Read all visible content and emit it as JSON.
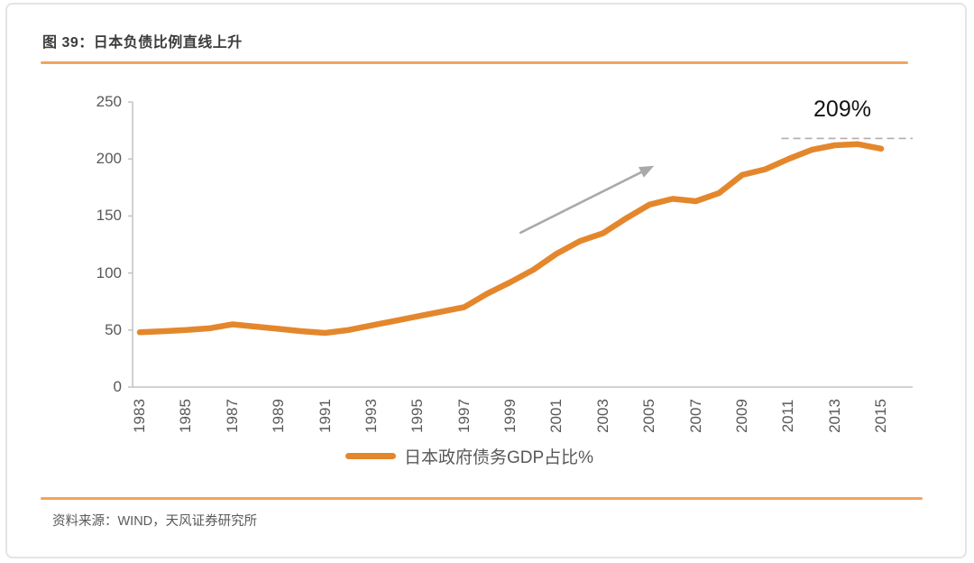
{
  "header": {
    "title": "图 39：日本负债比例直线上升"
  },
  "footer": {
    "source": "资料来源：WIND，天风证券研究所"
  },
  "theme": {
    "rule_orange": "#F2A45C",
    "line_orange": "#E4872C",
    "axis_gray": "#C2C2C2",
    "label_gray": "#595959",
    "arrow_gray": "#A9A9A9",
    "dashed_gray": "#AFAFAF",
    "annotation_black": "#141414"
  },
  "chart_data": {
    "type": "line",
    "title": "图 39：日本负债比例直线上升",
    "x": [
      1983,
      1984,
      1985,
      1986,
      1987,
      1988,
      1989,
      1990,
      1991,
      1992,
      1993,
      1994,
      1995,
      1996,
      1997,
      1998,
      1999,
      2000,
      2001,
      2002,
      2003,
      2004,
      2005,
      2006,
      2007,
      2008,
      2009,
      2010,
      2011,
      2012,
      2013,
      2014,
      2015
    ],
    "series": [
      {
        "name": "日本政府债务GDP占比%",
        "color": "#E4872C",
        "values": [
          48,
          49,
          50,
          51.5,
          55,
          53,
          51,
          49,
          47.5,
          50,
          54,
          58,
          62,
          66,
          70,
          82,
          92,
          103,
          117,
          128,
          135,
          148,
          160,
          165,
          163,
          170,
          186,
          191,
          200,
          208,
          212,
          213,
          209
        ]
      }
    ],
    "xlabel": "",
    "ylabel": "",
    "ylim": [
      0,
      250
    ],
    "yticks": [
      0,
      50,
      100,
      150,
      200,
      250
    ],
    "xtick_labels": [
      "1983",
      "1985",
      "1987",
      "1989",
      "1991",
      "1993",
      "1995",
      "1997",
      "1999",
      "2001",
      "2003",
      "2005",
      "2007",
      "2009",
      "2011",
      "2013",
      "2015"
    ],
    "grid": false,
    "legend_position": "bottom-center",
    "annotation": {
      "text": "209%",
      "dashed_line": true,
      "reference_level": 218,
      "from_year": 2010.7
    },
    "trend_arrow": {
      "from": {
        "year": 1999.4,
        "value": 135
      },
      "to": {
        "year": 2005.2,
        "value": 194
      }
    }
  }
}
